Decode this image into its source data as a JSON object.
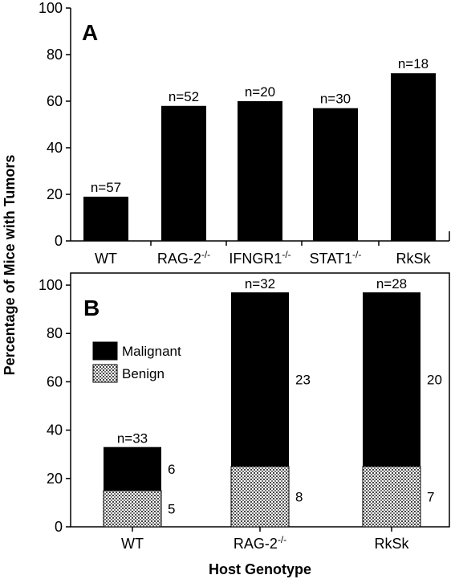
{
  "ylabel": "Percentage of Mice with Tumors",
  "xlabel": "Host Genotype",
  "chart_data": [
    {
      "type": "bar",
      "panel_label": "A",
      "categories": [
        {
          "base": "WT",
          "sup": ""
        },
        {
          "base": "RAG-2",
          "sup": "-/-"
        },
        {
          "base": "IFNGR1",
          "sup": "-/-"
        },
        {
          "base": "STAT1",
          "sup": "-/-"
        },
        {
          "base": "RkSk",
          "sup": ""
        }
      ],
      "values": [
        19,
        58,
        60,
        57,
        72
      ],
      "n_labels": [
        "n=57",
        "n=52",
        "n=20",
        "n=30",
        "n=18"
      ],
      "ylim": [
        0,
        100
      ],
      "yticks": [
        "0",
        "20",
        "40",
        "60",
        "80",
        "100"
      ],
      "bar_color": "#000000"
    },
    {
      "type": "bar",
      "stacked": true,
      "panel_label": "B",
      "categories": [
        {
          "base": "WT",
          "sup": ""
        },
        {
          "base": "RAG-2",
          "sup": "-/-"
        },
        {
          "base": "RkSk",
          "sup": ""
        }
      ],
      "series": [
        {
          "name": "Benign",
          "values": [
            15,
            25,
            25
          ],
          "counts": [
            "5",
            "8",
            "7"
          ],
          "pattern": "dotted"
        },
        {
          "name": "Malignant",
          "values": [
            18,
            72,
            72
          ],
          "counts": [
            "6",
            "23",
            "20"
          ],
          "color": "#000000"
        }
      ],
      "n_labels": [
        "n=33",
        "n=32",
        "n=28"
      ],
      "ylim": [
        0,
        105
      ],
      "yticks": [
        "0",
        "20",
        "40",
        "60",
        "80",
        "100"
      ],
      "legend_position": "top-left",
      "legend_order": [
        "Malignant",
        "Benign"
      ]
    }
  ]
}
